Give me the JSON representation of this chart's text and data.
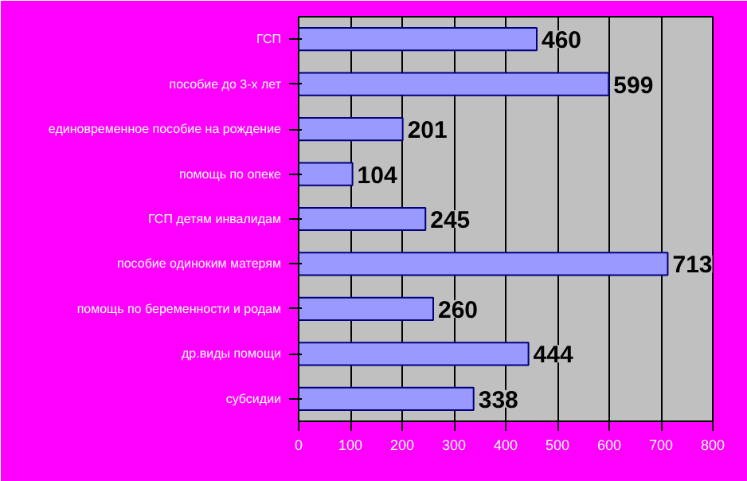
{
  "chart_data": {
    "type": "bar",
    "orientation": "horizontal",
    "categories": [
      "ГСП",
      "пособие до 3-х лет",
      "единовременное пособие на рождение",
      "помощь по опеке",
      "ГСП детям инвалидам",
      "пособие одиноким матерям",
      "помощь по беременности и родам",
      "др.виды помощи",
      "субсидии"
    ],
    "values": [
      460,
      599,
      201,
      104,
      245,
      713,
      260,
      444,
      338
    ],
    "color": "#9999ff",
    "data_labels": true,
    "grid": "x",
    "xlim": [
      0,
      800
    ],
    "xticks": [
      0,
      100,
      200,
      300,
      400,
      500,
      600,
      700,
      800
    ]
  }
}
